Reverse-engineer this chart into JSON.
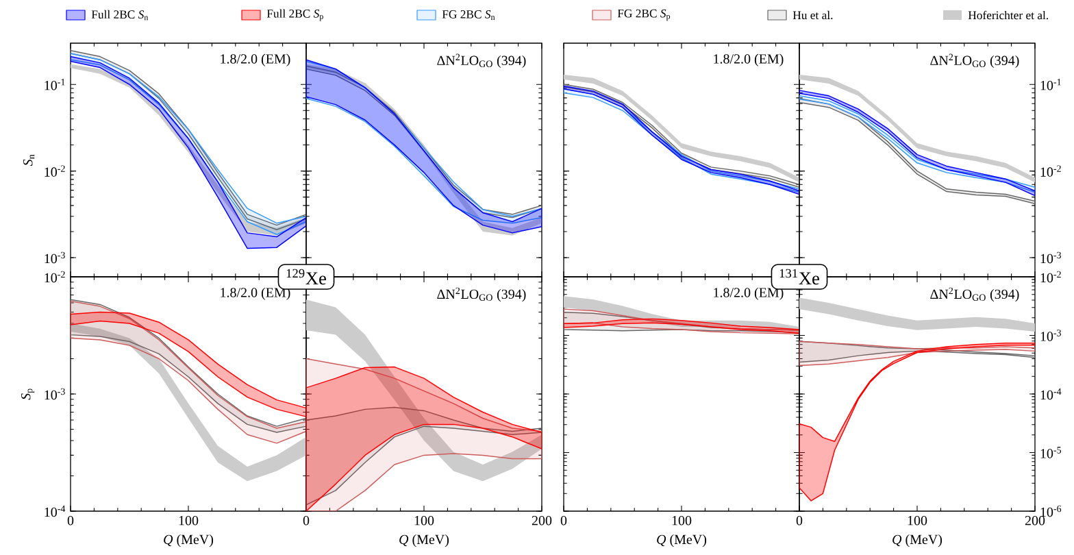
{
  "chart_data": [
    {
      "type": "area",
      "title": "1.8/2.0 (EM)",
      "ylabel": "*S*$_{n}$",
      "annotations": [
        "$^{129}$Xe"
      ],
      "legend": "top",
      "tick_labels": "y",
      "log": true,
      "x": [
        0,
        25,
        50,
        75,
        100,
        125,
        150,
        175,
        200
      ],
      "xlim": [
        0,
        200
      ],
      "xticks": [
        {
          "value": 0,
          "label": null
        },
        {
          "value": 100,
          "label": null
        },
        {
          "value": 200,
          "label": null
        }
      ],
      "ylim": [
        0.0006,
        0.3
      ],
      "yticks": [
        {
          "value": 0.001,
          "label": "10$^{-3}$"
        },
        {
          "value": 0.01,
          "label": "10$^{-2}$"
        },
        {
          "value": 0.1,
          "label": "10$^{-1}$"
        }
      ],
      "series": [
        {
          "name": "Full 2BC *S*$_{n}$",
          "color": "#0000ff",
          "values": [
            null,
            null,
            null,
            null,
            null,
            null,
            null,
            null,
            null
          ],
          "lower": [
            0.185,
            0.157,
            0.1,
            0.052,
            0.0185,
            0.005,
            0.00128,
            0.00131,
            0.00233
          ],
          "upper": [
            0.21,
            0.178,
            0.118,
            0.061,
            0.0237,
            0.0075,
            0.00193,
            0.00174,
            0.0029
          ]
        },
        {
          "name": "FG 2BC *S*$_{n}$",
          "color": "#3399ff",
          "values": [
            null,
            null,
            null,
            null,
            null,
            null,
            null,
            null,
            null
          ],
          "lower": [
            0.193,
            0.168,
            0.113,
            0.0586,
            0.0237,
            0.0075,
            0.0026,
            0.00185,
            0.0026
          ],
          "upper": [
            0.228,
            0.193,
            0.133,
            0.072,
            0.0303,
            0.0104,
            0.0037,
            0.0025,
            0.003
          ]
        },
        {
          "name": "Hu et al.",
          "color": "#666666",
          "values": [
            null,
            null,
            null,
            null,
            null,
            null,
            null,
            null,
            null
          ],
          "lower": [
            0.228,
            0.193,
            0.133,
            0.069,
            0.0268,
            0.0085,
            0.0028,
            0.0021,
            0.0028
          ],
          "upper": [
            0.247,
            0.21,
            0.145,
            0.078,
            0.0303,
            0.0096,
            0.00316,
            0.00237,
            0.00316
          ]
        },
        {
          "name": "Hoferichter et al.",
          "color": "#cccccc",
          "values": [
            null,
            null,
            null,
            null,
            null,
            null,
            null,
            null,
            null
          ],
          "lower": [
            0.155,
            0.133,
            0.092,
            0.044,
            0.0164,
            0.0056,
            0.002,
            0.0018,
            0.0025
          ],
          "upper": [
            0.171,
            0.151,
            0.104,
            0.052,
            0.02,
            0.0069,
            0.0026,
            0.0022,
            0.0029
          ]
        }
      ]
    },
    {
      "type": "area",
      "title": "ΔN$^{2}$LO$_{GO}$ (394)",
      "tick_labels": false,
      "log": true,
      "x": [
        0,
        25,
        50,
        75,
        100,
        125,
        150,
        175,
        200
      ],
      "xlim": [
        0,
        200
      ],
      "xticks": [
        {
          "value": 0,
          "label": null
        },
        {
          "value": 100,
          "label": null
        },
        {
          "value": 200,
          "label": null
        }
      ],
      "ylim": [
        0.0006,
        0.3
      ],
      "yticks": [
        {
          "value": 0.001,
          "label": null
        },
        {
          "value": 0.01,
          "label": null
        },
        {
          "value": 0.1,
          "label": null
        }
      ],
      "series": [
        {
          "color": "#0000ff",
          "values": [
            null,
            null,
            null,
            null,
            null,
            null,
            null,
            null,
            null
          ],
          "lower": [
            0.072,
            0.0586,
            0.0388,
            0.02,
            0.0096,
            0.004,
            0.00237,
            0.00193,
            0.00228
          ],
          "upper": [
            0.193,
            0.151,
            0.092,
            0.0458,
            0.0171,
            0.0064,
            0.0033,
            0.0026,
            0.0037
          ]
        },
        {
          "color": "#3399ff",
          "values": [
            null,
            null,
            null,
            null,
            null,
            null,
            null,
            null,
            null
          ],
          "lower": [
            0.069,
            0.056,
            0.0373,
            0.0193,
            0.0088,
            0.0039,
            0.0027,
            0.0025,
            0.0029
          ],
          "upper": [
            0.185,
            0.151,
            0.092,
            0.0458,
            0.0185,
            0.0075,
            0.0036,
            0.003,
            0.0037
          ]
        },
        {
          "color": "#666666",
          "values": [
            null,
            null,
            null,
            null,
            null,
            null,
            null,
            null,
            null
          ],
          "lower": [
            0.151,
            0.128,
            0.085,
            0.044,
            0.0171,
            0.0064,
            0.0033,
            0.0029,
            0.0037
          ],
          "upper": [
            0.164,
            0.139,
            0.092,
            0.0477,
            0.0185,
            0.0069,
            0.0036,
            0.00316,
            0.004
          ]
        },
        {
          "color": "#cccccc",
          "values": [
            null,
            null,
            null,
            null,
            null,
            null,
            null,
            null,
            null
          ],
          "lower": [
            0.155,
            0.133,
            0.092,
            0.044,
            0.0164,
            0.0056,
            0.002,
            0.0018,
            0.0025
          ],
          "upper": [
            0.171,
            0.151,
            0.104,
            0.052,
            0.02,
            0.0069,
            0.0026,
            0.0022,
            0.0029
          ]
        }
      ]
    },
    {
      "type": "area",
      "title": "1.8/2.0 (EM)",
      "annotations": [
        "$^{131}$Xe"
      ],
      "tick_labels": false,
      "log": true,
      "x": [
        0,
        25,
        50,
        75,
        100,
        125,
        150,
        175,
        200
      ],
      "xlim": [
        0,
        200
      ],
      "xticks": [
        {
          "value": 0,
          "label": null
        },
        {
          "value": 100,
          "label": null
        },
        {
          "value": 200,
          "label": null
        }
      ],
      "ylim": [
        0.0006,
        0.3
      ],
      "yticks": [
        {
          "value": 0.001,
          "label": null
        },
        {
          "value": 0.01,
          "label": null
        },
        {
          "value": 0.1,
          "label": null
        }
      ],
      "series": [
        {
          "color": "#0000ff",
          "values": [
            null,
            null,
            null,
            null,
            null,
            null,
            null,
            null,
            null
          ],
          "lower": [
            0.089,
            0.077,
            0.0544,
            0.026,
            0.0136,
            0.0096,
            0.0084,
            0.007,
            0.0054
          ],
          "upper": [
            0.096,
            0.084,
            0.0594,
            0.0284,
            0.0148,
            0.0104,
            0.0092,
            0.0077,
            0.0059
          ]
        },
        {
          "color": "#3399ff",
          "values": [
            null,
            null,
            null,
            null,
            null,
            null,
            null,
            null,
            null
          ],
          "lower": [
            0.08,
            0.0706,
            0.05,
            0.026,
            0.0142,
            0.0092,
            0.0081,
            0.007,
            0.0057
          ],
          "upper": [
            0.089,
            0.077,
            0.0544,
            0.0284,
            0.0155,
            0.01,
            0.0088,
            0.0076,
            0.0062
          ]
        },
        {
          "color": "#666666",
          "values": [
            null,
            null,
            null,
            null,
            null,
            null,
            null,
            null,
            null
          ],
          "lower": [
            0.094,
            0.082,
            0.058,
            0.0315,
            0.015,
            0.0104,
            0.0093,
            0.0082,
            0.0065
          ],
          "upper": [
            0.1,
            0.088,
            0.062,
            0.0337,
            0.0161,
            0.0111,
            0.01,
            0.0088,
            0.007
          ]
        },
        {
          "color": "#cccccc",
          "values": [
            null,
            null,
            null,
            null,
            null,
            null,
            null,
            null,
            null
          ],
          "lower": [
            0.114,
            0.1025,
            0.074,
            0.0385,
            0.0184,
            0.0148,
            0.013,
            0.0109,
            0.0074
          ],
          "upper": [
            0.13,
            0.119,
            0.084,
            0.0438,
            0.021,
            0.0168,
            0.0148,
            0.0124,
            0.0084
          ]
        }
      ]
    },
    {
      "type": "area",
      "title": "ΔN$^{2}$LO$_{GO}$ (394)",
      "tick_labels": "y",
      "log": true,
      "x": [
        0,
        25,
        50,
        75,
        100,
        125,
        150,
        175,
        200
      ],
      "xlim": [
        0,
        200
      ],
      "xticks": [
        {
          "value": 0,
          "label": null
        },
        {
          "value": 100,
          "label": null
        },
        {
          "value": 200,
          "label": null
        }
      ],
      "ylim": [
        0.0006,
        0.3
      ],
      "yticks": [
        {
          "value": 0.001,
          "label": "10$^{-3}$"
        },
        {
          "value": 0.01,
          "label": "10$^{-2}$"
        },
        {
          "value": 0.1,
          "label": "10$^{-1}$"
        }
      ],
      "series": [
        {
          "color": "#0000ff",
          "values": [
            null,
            null,
            null,
            null,
            null,
            null,
            null,
            null,
            null
          ],
          "lower": [
            0.079,
            0.069,
            0.0478,
            0.0284,
            0.0142,
            0.0104,
            0.0088,
            0.0074,
            0.0052
          ],
          "upper": [
            0.0855,
            0.074,
            0.052,
            0.031,
            0.0155,
            0.0114,
            0.0096,
            0.0081,
            0.0059
          ]
        },
        {
          "color": "#3399ff",
          "values": [
            null,
            null,
            null,
            null,
            null,
            null,
            null,
            null,
            null
          ],
          "lower": [
            0.0676,
            0.0594,
            0.042,
            0.0238,
            0.0124,
            0.0096,
            0.0084,
            0.0074,
            0.0057
          ],
          "upper": [
            0.074,
            0.0647,
            0.0457,
            0.026,
            0.0136,
            0.0104,
            0.0092,
            0.0081,
            0.0065
          ]
        },
        {
          "color": "#666666",
          "values": [
            null,
            null,
            null,
            null,
            null,
            null,
            null,
            null,
            null
          ],
          "lower": [
            0.062,
            0.0544,
            0.0385,
            0.02,
            0.0092,
            0.0058,
            0.0053,
            0.0051,
            0.0042
          ],
          "upper": [
            0.069,
            0.0594,
            0.042,
            0.0219,
            0.01,
            0.0062,
            0.0057,
            0.0054,
            0.0045
          ]
        },
        {
          "color": "#cccccc",
          "values": [
            null,
            null,
            null,
            null,
            null,
            null,
            null,
            null,
            null
          ],
          "lower": [
            0.114,
            0.1025,
            0.074,
            0.0385,
            0.0184,
            0.0148,
            0.013,
            0.0109,
            0.0074
          ],
          "upper": [
            0.13,
            0.119,
            0.084,
            0.0438,
            0.021,
            0.0168,
            0.0148,
            0.0124,
            0.0084
          ]
        }
      ]
    },
    {
      "type": "area",
      "title": "1.8/2.0 (EM)",
      "xlabel": "*Q* (MeV)",
      "ylabel": "*S*$_{p}$",
      "legend": "top",
      "log": true,
      "x": [
        0,
        25,
        50,
        75,
        100,
        125,
        150,
        175,
        200
      ],
      "xlim": [
        0,
        200
      ],
      "xticks": [
        0,
        100,
        {
          "value": 200,
          "label": null
        }
      ],
      "ylim": [
        0.0001,
        0.01
      ],
      "yticks": [
        {
          "value": 0.0001,
          "label": "10$^{-4}$"
        },
        {
          "value": 0.001,
          "label": "10$^{-3}$"
        },
        {
          "value": 0.01,
          "label": "10$^{-2}$"
        }
      ],
      "series": [
        {
          "name": "Full 2BC *S*$_{p}$",
          "color": "#ff0000",
          "values": [
            null,
            null,
            null,
            null,
            null,
            null,
            null,
            null,
            null
          ],
          "lower": [
            0.0039,
            0.0042,
            0.004,
            0.0033,
            0.0023,
            0.0014,
            0.00094,
            0.00074,
            0.00064
          ],
          "upper": [
            0.0048,
            0.005,
            0.0049,
            0.0041,
            0.0029,
            0.0018,
            0.0012,
            0.00089,
            0.00076
          ]
        },
        {
          "name": "FG 2BC *S*$_{p}$",
          "color": "#cd5c5c",
          "values": [
            null,
            null,
            null,
            null,
            null,
            null,
            null,
            null,
            null
          ],
          "lower": [
            0.003,
            0.0029,
            0.0026,
            0.002,
            0.0013,
            0.00074,
            0.00045,
            0.00038,
            0.00048
          ],
          "upper": [
            0.0062,
            0.0056,
            0.0044,
            0.0029,
            0.00167,
            0.00097,
            0.00064,
            0.00051,
            0.00058
          ]
        },
        {
          "color": "#666666",
          "values": [
            null,
            null,
            null,
            null,
            null,
            null,
            null,
            null,
            null
          ],
          "lower": [
            0.0032,
            0.0031,
            0.0028,
            0.0022,
            0.0014,
            0.00083,
            0.00055,
            0.00047,
            0.00053
          ],
          "upper": [
            0.0064,
            0.0058,
            0.0045,
            0.003,
            0.0017,
            0.001,
            0.00065,
            0.00053,
            0.00062
          ]
        },
        {
          "color": "#cccccc",
          "values": [
            null,
            null,
            null,
            null,
            null,
            null,
            null,
            null,
            null
          ],
          "lower": [
            0.0034,
            0.0031,
            0.0026,
            0.0015,
            0.00062,
            0.00026,
            0.00018,
            0.00022,
            0.0003
          ],
          "upper": [
            0.004,
            0.0036,
            0.003,
            0.002,
            0.00083,
            0.00036,
            0.00024,
            0.0003,
            0.00043
          ]
        }
      ]
    },
    {
      "type": "area",
      "title": "ΔN$^{2}$LO$_{GO}$ (394)",
      "xlabel": "*Q* (MeV)",
      "tick_labels": "x",
      "log": true,
      "x": [
        0,
        25,
        50,
        75,
        100,
        125,
        150,
        175,
        200
      ],
      "xlim": [
        0,
        200
      ],
      "xticks": [
        0,
        100,
        200
      ],
      "ylim": [
        0.0001,
        0.01
      ],
      "yticks": [
        {
          "value": 0.0001,
          "label": null
        },
        {
          "value": 0.001,
          "label": null
        },
        {
          "value": 0.01,
          "label": null
        }
      ],
      "series": [
        {
          "color": "#ff0000",
          "values": [
            null,
            null,
            null,
            null,
            null,
            null,
            null,
            null,
            null
          ],
          "lower": [
            0.0001,
            0.00017,
            0.0003,
            0.00045,
            0.00055,
            0.00055,
            0.00051,
            0.00043,
            0.00034
          ],
          "upper": [
            0.00113,
            0.00136,
            0.00168,
            0.0017,
            0.00136,
            0.00094,
            0.0007,
            0.00055,
            0.00047
          ]
        },
        {
          "color": "#cd5c5c",
          "values": [
            null,
            null,
            null,
            null,
            null,
            null,
            null,
            null,
            null
          ],
          "lower": [
            0.0001,
            0.0001,
            0.00015,
            0.00025,
            0.0003,
            0.00031,
            0.0003,
            0.00028,
            0.00028
          ],
          "upper": [
            0.002,
            0.0018,
            0.00163,
            0.00136,
            0.00106,
            0.00083,
            0.00062,
            0.00051,
            0.00048
          ]
        },
        {
          "color": "#666666",
          "values": [
            null,
            null,
            null,
            null,
            null,
            null,
            null,
            null,
            null
          ],
          "lower": [
            0.000113,
            0.00015,
            0.00026,
            0.00043,
            0.00053,
            0.00051,
            0.00048,
            0.00045,
            0.00047
          ],
          "upper": [
            0.0006,
            0.00065,
            0.00074,
            0.00077,
            0.00072,
            0.0006,
            0.00051,
            0.00048,
            0.00051
          ]
        },
        {
          "color": "#cccccc",
          "values": [
            null,
            null,
            null,
            null,
            null,
            null,
            null,
            null,
            null
          ],
          "lower": [
            0.0035,
            0.0032,
            0.0019,
            0.00089,
            0.0004,
            0.00022,
            0.00018,
            0.00023,
            0.00034
          ],
          "upper": [
            0.0064,
            0.0055,
            0.0032,
            0.0014,
            0.00062,
            0.00032,
            0.00025,
            0.00032,
            0.00045
          ]
        }
      ]
    },
    {
      "type": "area",
      "title": "1.8/2.0 (EM)",
      "xlabel": "*Q* (MeV)",
      "tick_labels": "x",
      "log": true,
      "x": [
        0,
        25,
        50,
        75,
        100,
        125,
        150,
        175,
        200
      ],
      "xlim": [
        0,
        200
      ],
      "xticks": [
        0,
        100,
        {
          "value": 200,
          "label": null
        }
      ],
      "ylim": [
        1e-06,
        0.01
      ],
      "yticks": [
        {
          "value": 1e-06,
          "label": null
        },
        {
          "value": 1e-05,
          "label": null
        },
        {
          "value": 0.0001,
          "label": null
        },
        {
          "value": 0.001,
          "label": null
        },
        {
          "value": 0.01,
          "label": null
        }
      ],
      "series": [
        {
          "color": "#ff0000",
          "values": [
            null,
            null,
            null,
            null,
            null,
            null,
            null,
            null,
            null
          ],
          "lower": [
            0.00136,
            0.00144,
            0.00159,
            0.00163,
            0.00155,
            0.0014,
            0.00126,
            0.0012,
            0.00109
          ],
          "upper": [
            0.00159,
            0.00163,
            0.00185,
            0.00192,
            0.0018,
            0.00163,
            0.00144,
            0.00136,
            0.00126
          ]
        },
        {
          "color": "#cd5c5c",
          "values": [
            null,
            null,
            null,
            null,
            null,
            null,
            null,
            null,
            null
          ],
          "lower": [
            0.00159,
            0.00163,
            0.0014,
            0.00131,
            0.00126,
            0.00116,
            0.00111,
            0.00109,
            0.00106
          ],
          "upper": [
            0.00281,
            0.00264,
            0.00218,
            0.0018,
            0.00159,
            0.0014,
            0.00131,
            0.00126,
            0.00123
          ]
        },
        {
          "color": "#666666",
          "values": [
            null,
            null,
            null,
            null,
            null,
            null,
            null,
            null,
            null
          ],
          "lower": [
            0.00126,
            0.00123,
            0.0012,
            0.00123,
            0.00126,
            0.0012,
            0.0012,
            0.00117,
            0.00111
          ],
          "upper": [
            0.00248,
            0.00238,
            0.0021,
            0.0018,
            0.00155,
            0.00136,
            0.00131,
            0.00126,
            0.00123
          ]
        },
        {
          "color": "#cccccc",
          "values": [
            null,
            null,
            null,
            null,
            null,
            null,
            null,
            null,
            null
          ],
          "lower": [
            0.003,
            0.00264,
            0.00218,
            0.0017,
            0.0014,
            0.0014,
            0.0014,
            0.00131,
            0.00116
          ],
          "upper": [
            0.00467,
            0.00411,
            0.00319,
            0.00232,
            0.0018,
            0.0018,
            0.0018,
            0.0017,
            0.0014
          ]
        }
      ]
    },
    {
      "type": "area",
      "title": "ΔN$^{2}$LO$_{GO}$ (394)",
      "xlabel": "*Q* (MeV)",
      "log": true,
      "x": [
        0,
        25,
        50,
        75,
        100,
        125,
        150,
        175,
        200
      ],
      "xlim": [
        0,
        200
      ],
      "xticks": [
        0,
        100,
        200
      ],
      "ylim": [
        1e-06,
        0.01
      ],
      "yticks": [
        {
          "value": 1e-06,
          "label": "10$^{-6}$"
        },
        {
          "value": 1e-05,
          "label": "10$^{-5}$"
        },
        {
          "value": 0.0001,
          "label": "10$^{-4}$"
        },
        {
          "value": 0.001,
          "label": "10$^{-3}$"
        },
        {
          "value": 0.01,
          "label": "10$^{-2}$"
        }
      ],
      "series": [
        {
          "color": "#ff0000",
          "x": [
            0,
            10,
            20,
            30,
            50,
            60,
            70,
            80,
            100,
            125,
            150,
            175,
            200
          ],
          "values": [
            null,
            null,
            null,
            null,
            null,
            null,
            null,
            null,
            null,
            null,
            null,
            null,
            null
          ],
          "lower": [
            2.5e-06,
            1.5e-06,
            2e-06,
            1.1e-05,
            8.1e-05,
            0.000158,
            0.00025,
            0.00033,
            0.00051,
            0.00059,
            0.00064,
            0.00068,
            0.00068
          ],
          "upper": [
            3.1e-05,
            2.7e-05,
            1.8e-05,
            1.55e-05,
            8.6e-05,
            0.000166,
            0.00026,
            0.00036,
            0.00054,
            0.00064,
            0.0007,
            0.00074,
            0.00074
          ]
        },
        {
          "color": "#cd5c5c",
          "values": [
            null,
            null,
            null,
            null,
            null,
            null,
            null,
            null,
            null
          ],
          "lower": [
            0.000305,
            0.000325,
            0.00037,
            0.00042,
            0.00051,
            0.00054,
            0.00056,
            0.000575,
            0.00054
          ],
          "upper": [
            0.00079,
            0.00074,
            0.0007,
            0.00064,
            0.00059,
            0.00061,
            0.00061,
            0.00064,
            0.00061
          ]
        },
        {
          "color": "#666666",
          "values": [
            null,
            null,
            null,
            null,
            null,
            null,
            null,
            null,
            null
          ],
          "lower": [
            0.00035,
            0.00038,
            0.00045,
            0.00051,
            0.00054,
            0.00052,
            0.00049,
            0.00047,
            0.00042
          ],
          "upper": [
            0.00079,
            0.00074,
            0.00067,
            0.00061,
            0.00059,
            0.00056,
            0.00052,
            0.00049,
            0.00045
          ]
        },
        {
          "color": "#cccccc",
          "values": [
            null,
            null,
            null,
            null,
            null,
            null,
            null,
            null,
            null
          ],
          "lower": [
            0.0028,
            0.0023,
            0.0018,
            0.00144,
            0.00123,
            0.00131,
            0.0014,
            0.00131,
            0.00116
          ],
          "upper": [
            0.0044,
            0.0036,
            0.0028,
            0.00218,
            0.0018,
            0.00192,
            0.00205,
            0.00192,
            0.0016
          ]
        }
      ]
    }
  ]
}
